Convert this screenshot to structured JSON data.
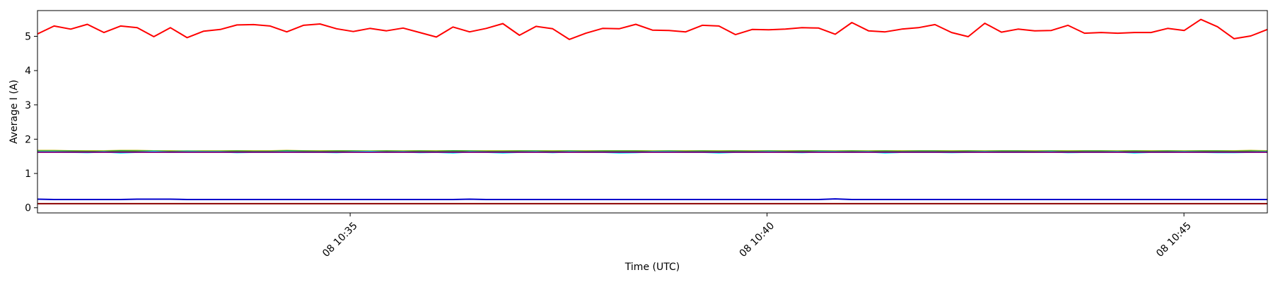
{
  "chart_data": {
    "type": "line",
    "title": "",
    "xlabel": "Time (UTC)",
    "ylabel": "Average I (A)",
    "x_start": "10:31:15",
    "x_end": "10:46:00",
    "xlim": [
      "10:31:15",
      "10:46:00"
    ],
    "ylim": [
      -0.15,
      5.75
    ],
    "grid": false,
    "legend": "none",
    "y_ticks": [
      0,
      1,
      2,
      3,
      4,
      5
    ],
    "x_ticks": [
      {
        "time": "10:35",
        "label": "08 10:35"
      },
      {
        "time": "10:40",
        "label": "08 10:40"
      },
      {
        "time": "10:45",
        "label": "08 10:45"
      }
    ],
    "series": [
      {
        "color": "#ff0000",
        "values": [
          5.07,
          5.3,
          5.21,
          5.35,
          5.11,
          5.3,
          5.25,
          4.99,
          5.25,
          4.96,
          5.15,
          5.2,
          5.33,
          5.34,
          5.3,
          5.13,
          5.32,
          5.36,
          5.22,
          5.14,
          5.23,
          5.16,
          5.24,
          5.11,
          4.98,
          5.27,
          5.13,
          5.23,
          5.37,
          5.03,
          5.29,
          5.22,
          4.91,
          5.09,
          5.23,
          5.22,
          5.35,
          5.18,
          5.17,
          5.13,
          5.32,
          5.3,
          5.05,
          5.2,
          5.19,
          5.21,
          5.25,
          5.24,
          5.06,
          5.4,
          5.16,
          5.13,
          5.21,
          5.25,
          5.34,
          5.11,
          4.99,
          5.38,
          5.12,
          5.21,
          5.16,
          5.17,
          5.32,
          5.09,
          5.11,
          5.09,
          5.11,
          5.11,
          5.23,
          5.17,
          5.49,
          5.28,
          4.93,
          5.01,
          5.2
        ]
      },
      {
        "color": "#bcbd22",
        "values": [
          1.67,
          1.67,
          1.66,
          1.66,
          1.66,
          1.67,
          1.67,
          1.66,
          1.66,
          1.65,
          1.66,
          1.66,
          1.66,
          1.66,
          1.66,
          1.67,
          1.66,
          1.66,
          1.66,
          1.66,
          1.66,
          1.66,
          1.66,
          1.66,
          1.66,
          1.66,
          1.66,
          1.66,
          1.66,
          1.66,
          1.66,
          1.66,
          1.66,
          1.66,
          1.66,
          1.66,
          1.66,
          1.66,
          1.66,
          1.66,
          1.66,
          1.66,
          1.66,
          1.66,
          1.66,
          1.66,
          1.66,
          1.66,
          1.66,
          1.66,
          1.66,
          1.66,
          1.66,
          1.66,
          1.66,
          1.66,
          1.66,
          1.66,
          1.66,
          1.66,
          1.66,
          1.66,
          1.66,
          1.66,
          1.66,
          1.66,
          1.66,
          1.66,
          1.66,
          1.66,
          1.66,
          1.66,
          1.66,
          1.67,
          1.66
        ]
      },
      {
        "color": "#2ca02c",
        "values": [
          1.65,
          1.65,
          1.65,
          1.64,
          1.64,
          1.66,
          1.65,
          1.65,
          1.64,
          1.65,
          1.64,
          1.64,
          1.65,
          1.64,
          1.64,
          1.66,
          1.65,
          1.64,
          1.65,
          1.65,
          1.64,
          1.65,
          1.64,
          1.65,
          1.64,
          1.66,
          1.65,
          1.64,
          1.64,
          1.65,
          1.65,
          1.64,
          1.65,
          1.64,
          1.65,
          1.65,
          1.65,
          1.64,
          1.65,
          1.64,
          1.65,
          1.64,
          1.65,
          1.64,
          1.65,
          1.64,
          1.65,
          1.65,
          1.64,
          1.65,
          1.64,
          1.65,
          1.64,
          1.65,
          1.65,
          1.64,
          1.65,
          1.64,
          1.65,
          1.65,
          1.64,
          1.65,
          1.64,
          1.65,
          1.65,
          1.64,
          1.65,
          1.64,
          1.65,
          1.64,
          1.65,
          1.65,
          1.64,
          1.65,
          1.64
        ]
      },
      {
        "color": "#00ffff",
        "values": [
          1.63,
          1.63,
          1.62,
          1.61,
          1.63,
          1.6,
          1.62,
          1.64,
          1.62,
          1.63,
          1.63,
          1.63,
          1.61,
          1.62,
          1.62,
          1.63,
          1.62,
          1.62,
          1.61,
          1.63,
          1.64,
          1.62,
          1.63,
          1.61,
          1.62,
          1.6,
          1.63,
          1.62,
          1.6,
          1.62,
          1.63,
          1.61,
          1.63,
          1.62,
          1.62,
          1.6,
          1.61,
          1.63,
          1.63,
          1.62,
          1.62,
          1.6,
          1.62,
          1.62,
          1.63,
          1.62,
          1.61,
          1.63,
          1.63,
          1.62,
          1.63,
          1.6,
          1.62,
          1.62,
          1.62,
          1.61,
          1.62,
          1.63,
          1.62,
          1.62,
          1.62,
          1.63,
          1.61,
          1.62,
          1.62,
          1.63,
          1.6,
          1.62,
          1.62,
          1.63,
          1.62,
          1.61,
          1.61,
          1.62,
          1.63
        ]
      },
      {
        "color": "#800080",
        "values": [
          1.62,
          1.62,
          1.62,
          1.62,
          1.62,
          1.62,
          1.62,
          1.62,
          1.62,
          1.62,
          1.62,
          1.62,
          1.62,
          1.62,
          1.62,
          1.62,
          1.62,
          1.62,
          1.62,
          1.62,
          1.62,
          1.62,
          1.62,
          1.62,
          1.62,
          1.62,
          1.62,
          1.62,
          1.62,
          1.62,
          1.62,
          1.62,
          1.62,
          1.62,
          1.62,
          1.62,
          1.62,
          1.62,
          1.62,
          1.62,
          1.62,
          1.62,
          1.62,
          1.62,
          1.62,
          1.62,
          1.62,
          1.62,
          1.62,
          1.62,
          1.62,
          1.62,
          1.62,
          1.62,
          1.62,
          1.62,
          1.62,
          1.62,
          1.62,
          1.62,
          1.62,
          1.62,
          1.62,
          1.62,
          1.62,
          1.62,
          1.62,
          1.62,
          1.62,
          1.62,
          1.62,
          1.62,
          1.62,
          1.62,
          1.62
        ]
      },
      {
        "color": "#0000cc",
        "values": [
          0.25,
          0.24,
          0.24,
          0.24,
          0.24,
          0.24,
          0.25,
          0.25,
          0.25,
          0.24,
          0.24,
          0.24,
          0.24,
          0.24,
          0.24,
          0.24,
          0.24,
          0.24,
          0.24,
          0.24,
          0.24,
          0.24,
          0.24,
          0.24,
          0.24,
          0.24,
          0.25,
          0.24,
          0.24,
          0.24,
          0.24,
          0.24,
          0.24,
          0.24,
          0.24,
          0.24,
          0.24,
          0.24,
          0.24,
          0.24,
          0.24,
          0.24,
          0.24,
          0.24,
          0.24,
          0.24,
          0.24,
          0.24,
          0.26,
          0.24,
          0.24,
          0.24,
          0.24,
          0.24,
          0.24,
          0.24,
          0.24,
          0.24,
          0.24,
          0.24,
          0.24,
          0.24,
          0.24,
          0.24,
          0.24,
          0.24,
          0.24,
          0.24,
          0.24,
          0.24,
          0.24,
          0.24,
          0.24,
          0.24,
          0.24
        ]
      },
      {
        "color": "#8b0000",
        "values": [
          0.12,
          0.12,
          0.12,
          0.12,
          0.12,
          0.12,
          0.12,
          0.12,
          0.12,
          0.12,
          0.12,
          0.12,
          0.12,
          0.12,
          0.12,
          0.12,
          0.12,
          0.12,
          0.12,
          0.12,
          0.12,
          0.12,
          0.12,
          0.12,
          0.12,
          0.12,
          0.12,
          0.12,
          0.12,
          0.12,
          0.12,
          0.12,
          0.12,
          0.12,
          0.12,
          0.12,
          0.12,
          0.12,
          0.12,
          0.12,
          0.12,
          0.12,
          0.12,
          0.12,
          0.12,
          0.12,
          0.12,
          0.12,
          0.12,
          0.12,
          0.12,
          0.12,
          0.12,
          0.12,
          0.12,
          0.12,
          0.12,
          0.12,
          0.12,
          0.12,
          0.12,
          0.12,
          0.12,
          0.12,
          0.12,
          0.12,
          0.12,
          0.12,
          0.12,
          0.12,
          0.12,
          0.12,
          0.12,
          0.12,
          0.12
        ]
      }
    ]
  }
}
